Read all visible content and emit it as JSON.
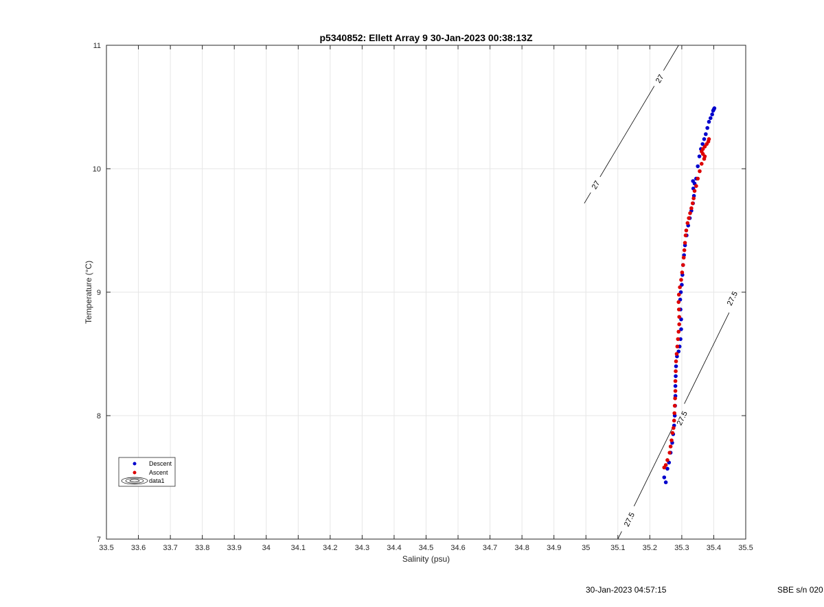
{
  "chart_data": {
    "type": "scatter",
    "title": "p5340852: Ellett Array 9 30-Jan-2023 00:38:13Z",
    "xlabel": "Salinity (psu)",
    "ylabel": "Temperature (°C)",
    "xlim": [
      33.5,
      35.5
    ],
    "ylim": [
      7,
      11
    ],
    "xticks": [
      "33.5",
      "33.6",
      "33.7",
      "33.8",
      "33.9",
      "34",
      "34.1",
      "34.2",
      "34.3",
      "34.4",
      "34.5",
      "34.6",
      "34.7",
      "34.8",
      "34.9",
      "35",
      "35.1",
      "35.2",
      "35.3",
      "35.4",
      "35.5"
    ],
    "yticks": [
      "7",
      "8",
      "9",
      "10",
      "11"
    ],
    "grid": true,
    "legend_position": "bottom-left",
    "series": [
      {
        "name": "Descent",
        "color": "#0000cc",
        "points": [
          [
            35.25,
            7.46
          ],
          [
            35.245,
            7.5
          ],
          [
            35.255,
            7.57
          ],
          [
            35.26,
            7.62
          ],
          [
            35.265,
            7.7
          ],
          [
            35.27,
            7.78
          ],
          [
            35.273,
            7.85
          ],
          [
            35.276,
            7.92
          ],
          [
            35.278,
            8.0
          ],
          [
            35.279,
            8.08
          ],
          [
            35.28,
            8.16
          ],
          [
            35.28,
            8.24
          ],
          [
            35.281,
            8.32
          ],
          [
            35.282,
            8.4
          ],
          [
            35.285,
            8.48
          ],
          [
            35.29,
            8.52
          ],
          [
            35.293,
            8.56
          ],
          [
            35.296,
            8.62
          ],
          [
            35.298,
            8.7
          ],
          [
            35.298,
            8.78
          ],
          [
            35.296,
            8.86
          ],
          [
            35.295,
            8.94
          ],
          [
            35.297,
            9.0
          ],
          [
            35.3,
            9.06
          ],
          [
            35.302,
            9.14
          ],
          [
            35.304,
            9.22
          ],
          [
            35.307,
            9.3
          ],
          [
            35.31,
            9.38
          ],
          [
            35.315,
            9.46
          ],
          [
            35.32,
            9.54
          ],
          [
            35.325,
            9.6
          ],
          [
            35.33,
            9.66
          ],
          [
            35.335,
            9.72
          ],
          [
            35.338,
            9.78
          ],
          [
            35.336,
            9.84
          ],
          [
            35.335,
            9.9
          ],
          [
            35.34,
            9.88
          ],
          [
            35.345,
            9.92
          ],
          [
            35.35,
            10.02
          ],
          [
            35.355,
            10.1
          ],
          [
            35.36,
            10.16
          ],
          [
            35.365,
            10.2
          ],
          [
            35.37,
            10.24
          ],
          [
            35.375,
            10.28
          ],
          [
            35.38,
            10.33
          ],
          [
            35.385,
            10.38
          ],
          [
            35.39,
            10.41
          ],
          [
            35.395,
            10.44
          ],
          [
            35.398,
            10.47
          ],
          [
            35.4,
            10.48
          ],
          [
            35.402,
            10.49
          ]
        ]
      },
      {
        "name": "Ascent",
        "color": "#dd0000",
        "points": [
          [
            35.245,
            7.58
          ],
          [
            35.25,
            7.6
          ],
          [
            35.255,
            7.64
          ],
          [
            35.262,
            7.7
          ],
          [
            35.265,
            7.75
          ],
          [
            35.268,
            7.8
          ],
          [
            35.271,
            7.86
          ],
          [
            35.274,
            7.9
          ],
          [
            35.276,
            7.96
          ],
          [
            35.277,
            8.02
          ],
          [
            35.278,
            8.08
          ],
          [
            35.279,
            8.14
          ],
          [
            35.28,
            8.2
          ],
          [
            35.28,
            8.28
          ],
          [
            35.281,
            8.36
          ],
          [
            35.282,
            8.44
          ],
          [
            35.284,
            8.5
          ],
          [
            35.286,
            8.56
          ],
          [
            35.288,
            8.62
          ],
          [
            35.29,
            8.68
          ],
          [
            35.292,
            8.74
          ],
          [
            35.292,
            8.8
          ],
          [
            35.291,
            8.86
          ],
          [
            35.29,
            8.92
          ],
          [
            35.291,
            8.98
          ],
          [
            35.294,
            9.04
          ],
          [
            35.298,
            9.1
          ],
          [
            35.301,
            9.16
          ],
          [
            35.304,
            9.22
          ],
          [
            35.306,
            9.28
          ],
          [
            35.308,
            9.34
          ],
          [
            35.31,
            9.4
          ],
          [
            35.312,
            9.46
          ],
          [
            35.314,
            9.5
          ],
          [
            35.318,
            9.56
          ],
          [
            35.322,
            9.6
          ],
          [
            35.326,
            9.64
          ],
          [
            35.33,
            9.68
          ],
          [
            35.334,
            9.72
          ],
          [
            35.337,
            9.76
          ],
          [
            35.34,
            9.82
          ],
          [
            35.345,
            9.86
          ],
          [
            35.35,
            9.92
          ],
          [
            35.356,
            9.98
          ],
          [
            35.362,
            10.04
          ],
          [
            35.37,
            10.08
          ],
          [
            35.372,
            10.1
          ],
          [
            35.366,
            10.12
          ],
          [
            35.362,
            10.14
          ],
          [
            35.366,
            10.16
          ],
          [
            35.372,
            10.18
          ],
          [
            35.378,
            10.2
          ],
          [
            35.383,
            10.22
          ],
          [
            35.385,
            10.24
          ]
        ]
      }
    ],
    "isopycnals": [
      {
        "label": "27",
        "from": [
          34.995,
          9.72
        ],
        "to": [
          35.29,
          11.0
        ],
        "label_positions": [
          [
            35.03,
            9.87
          ],
          [
            35.23,
            10.73
          ]
        ]
      },
      {
        "label": "27.5",
        "from": [
          35.1,
          7.0
        ],
        "to": [
          35.47,
          8.95
        ],
        "label_positions": [
          [
            35.135,
            7.16
          ],
          [
            35.3,
            7.98
          ],
          [
            35.457,
            8.95
          ]
        ]
      }
    ],
    "legend_extra": "data1",
    "footer": {
      "timestamp": "30-Jan-2023 04:57:15",
      "serial": "SBE s/n 020"
    }
  }
}
